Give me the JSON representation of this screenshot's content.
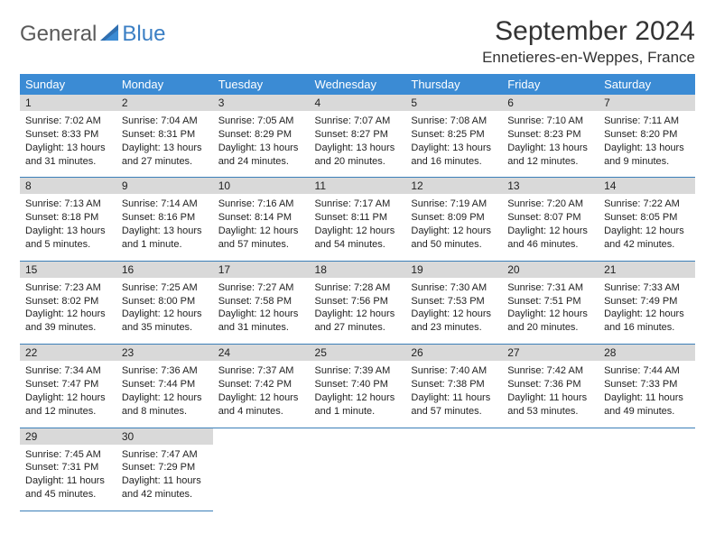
{
  "logo": {
    "part1": "General",
    "part2": "Blue"
  },
  "title": "September 2024",
  "location": "Ennetieres-en-Weppes, France",
  "weekday_labels": [
    "Sunday",
    "Monday",
    "Tuesday",
    "Wednesday",
    "Thursday",
    "Friday",
    "Saturday"
  ],
  "colors": {
    "header_bg": "#3b8bd4",
    "band_bg": "#d9d9d9",
    "rule": "#3b7fb8",
    "logo_gray": "#5a5a5a",
    "logo_blue": "#3b7fc4"
  },
  "days": [
    {
      "n": "1",
      "sunrise": "Sunrise: 7:02 AM",
      "sunset": "Sunset: 8:33 PM",
      "daylight": "Daylight: 13 hours and 31 minutes."
    },
    {
      "n": "2",
      "sunrise": "Sunrise: 7:04 AM",
      "sunset": "Sunset: 8:31 PM",
      "daylight": "Daylight: 13 hours and 27 minutes."
    },
    {
      "n": "3",
      "sunrise": "Sunrise: 7:05 AM",
      "sunset": "Sunset: 8:29 PM",
      "daylight": "Daylight: 13 hours and 24 minutes."
    },
    {
      "n": "4",
      "sunrise": "Sunrise: 7:07 AM",
      "sunset": "Sunset: 8:27 PM",
      "daylight": "Daylight: 13 hours and 20 minutes."
    },
    {
      "n": "5",
      "sunrise": "Sunrise: 7:08 AM",
      "sunset": "Sunset: 8:25 PM",
      "daylight": "Daylight: 13 hours and 16 minutes."
    },
    {
      "n": "6",
      "sunrise": "Sunrise: 7:10 AM",
      "sunset": "Sunset: 8:23 PM",
      "daylight": "Daylight: 13 hours and 12 minutes."
    },
    {
      "n": "7",
      "sunrise": "Sunrise: 7:11 AM",
      "sunset": "Sunset: 8:20 PM",
      "daylight": "Daylight: 13 hours and 9 minutes."
    },
    {
      "n": "8",
      "sunrise": "Sunrise: 7:13 AM",
      "sunset": "Sunset: 8:18 PM",
      "daylight": "Daylight: 13 hours and 5 minutes."
    },
    {
      "n": "9",
      "sunrise": "Sunrise: 7:14 AM",
      "sunset": "Sunset: 8:16 PM",
      "daylight": "Daylight: 13 hours and 1 minute."
    },
    {
      "n": "10",
      "sunrise": "Sunrise: 7:16 AM",
      "sunset": "Sunset: 8:14 PM",
      "daylight": "Daylight: 12 hours and 57 minutes."
    },
    {
      "n": "11",
      "sunrise": "Sunrise: 7:17 AM",
      "sunset": "Sunset: 8:11 PM",
      "daylight": "Daylight: 12 hours and 54 minutes."
    },
    {
      "n": "12",
      "sunrise": "Sunrise: 7:19 AM",
      "sunset": "Sunset: 8:09 PM",
      "daylight": "Daylight: 12 hours and 50 minutes."
    },
    {
      "n": "13",
      "sunrise": "Sunrise: 7:20 AM",
      "sunset": "Sunset: 8:07 PM",
      "daylight": "Daylight: 12 hours and 46 minutes."
    },
    {
      "n": "14",
      "sunrise": "Sunrise: 7:22 AM",
      "sunset": "Sunset: 8:05 PM",
      "daylight": "Daylight: 12 hours and 42 minutes."
    },
    {
      "n": "15",
      "sunrise": "Sunrise: 7:23 AM",
      "sunset": "Sunset: 8:02 PM",
      "daylight": "Daylight: 12 hours and 39 minutes."
    },
    {
      "n": "16",
      "sunrise": "Sunrise: 7:25 AM",
      "sunset": "Sunset: 8:00 PM",
      "daylight": "Daylight: 12 hours and 35 minutes."
    },
    {
      "n": "17",
      "sunrise": "Sunrise: 7:27 AM",
      "sunset": "Sunset: 7:58 PM",
      "daylight": "Daylight: 12 hours and 31 minutes."
    },
    {
      "n": "18",
      "sunrise": "Sunrise: 7:28 AM",
      "sunset": "Sunset: 7:56 PM",
      "daylight": "Daylight: 12 hours and 27 minutes."
    },
    {
      "n": "19",
      "sunrise": "Sunrise: 7:30 AM",
      "sunset": "Sunset: 7:53 PM",
      "daylight": "Daylight: 12 hours and 23 minutes."
    },
    {
      "n": "20",
      "sunrise": "Sunrise: 7:31 AM",
      "sunset": "Sunset: 7:51 PM",
      "daylight": "Daylight: 12 hours and 20 minutes."
    },
    {
      "n": "21",
      "sunrise": "Sunrise: 7:33 AM",
      "sunset": "Sunset: 7:49 PM",
      "daylight": "Daylight: 12 hours and 16 minutes."
    },
    {
      "n": "22",
      "sunrise": "Sunrise: 7:34 AM",
      "sunset": "Sunset: 7:47 PM",
      "daylight": "Daylight: 12 hours and 12 minutes."
    },
    {
      "n": "23",
      "sunrise": "Sunrise: 7:36 AM",
      "sunset": "Sunset: 7:44 PM",
      "daylight": "Daylight: 12 hours and 8 minutes."
    },
    {
      "n": "24",
      "sunrise": "Sunrise: 7:37 AM",
      "sunset": "Sunset: 7:42 PM",
      "daylight": "Daylight: 12 hours and 4 minutes."
    },
    {
      "n": "25",
      "sunrise": "Sunrise: 7:39 AM",
      "sunset": "Sunset: 7:40 PM",
      "daylight": "Daylight: 12 hours and 1 minute."
    },
    {
      "n": "26",
      "sunrise": "Sunrise: 7:40 AM",
      "sunset": "Sunset: 7:38 PM",
      "daylight": "Daylight: 11 hours and 57 minutes."
    },
    {
      "n": "27",
      "sunrise": "Sunrise: 7:42 AM",
      "sunset": "Sunset: 7:36 PM",
      "daylight": "Daylight: 11 hours and 53 minutes."
    },
    {
      "n": "28",
      "sunrise": "Sunrise: 7:44 AM",
      "sunset": "Sunset: 7:33 PM",
      "daylight": "Daylight: 11 hours and 49 minutes."
    },
    {
      "n": "29",
      "sunrise": "Sunrise: 7:45 AM",
      "sunset": "Sunset: 7:31 PM",
      "daylight": "Daylight: 11 hours and 45 minutes."
    },
    {
      "n": "30",
      "sunrise": "Sunrise: 7:47 AM",
      "sunset": "Sunset: 7:29 PM",
      "daylight": "Daylight: 11 hours and 42 minutes."
    }
  ]
}
